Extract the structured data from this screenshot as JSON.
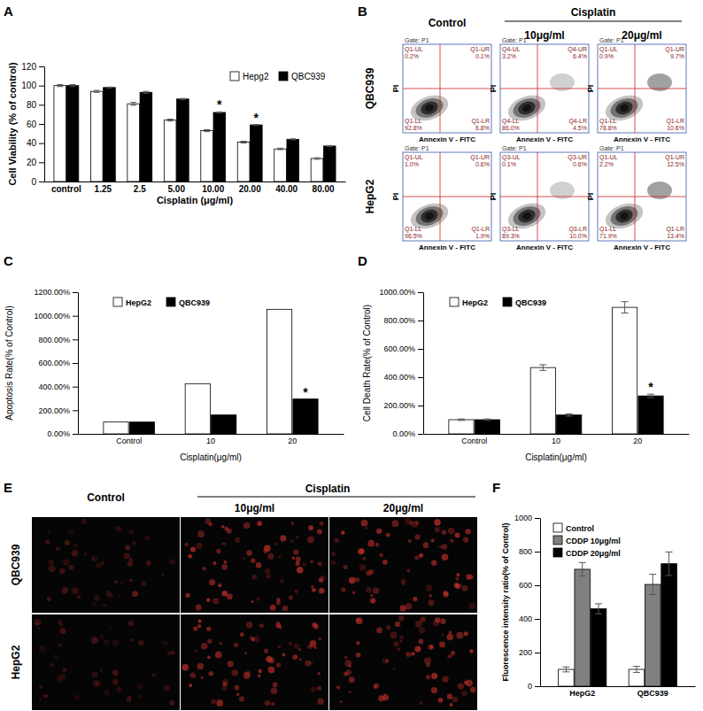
{
  "chart_data": [
    {
      "type": "bar",
      "title": "A",
      "x_label": "Cisplatin (μg/ml)",
      "y_label": "Cell Viability (% of control)",
      "categories": [
        "control",
        "1.25",
        "2.5",
        "5.00",
        "10.00",
        "20.00",
        "40.00",
        "80.00"
      ],
      "series": [
        {
          "name": "Hepg2",
          "color": "#ffffff",
          "values": [
            100,
            94,
            81,
            64,
            53,
            41,
            34,
            24
          ],
          "errors": [
            1,
            1,
            1.5,
            1,
            1,
            1,
            0.8,
            0.8
          ]
        },
        {
          "name": "QBC939",
          "color": "#000000",
          "values": [
            100,
            98,
            93,
            86,
            72,
            59,
            44,
            37
          ],
          "errors": [
            1,
            0.5,
            1,
            0.5,
            0.5,
            0.5,
            0.5,
            0.5
          ]
        }
      ],
      "annotations": [
        {
          "text": "*",
          "x": "10.00",
          "series": "QBC939"
        },
        {
          "text": "*",
          "x": "20.00",
          "series": "QBC939"
        }
      ],
      "ylim": [
        0,
        120
      ],
      "yticks": [
        0,
        20,
        40,
        60,
        80,
        100,
        120
      ],
      "grid": false,
      "legend": "upper right"
    },
    {
      "type": "bar",
      "title": "C",
      "x_label": "Cisplatin(μg/ml)",
      "y_label": "Apoptosis Rate(% of Control)",
      "categories": [
        "Control",
        "10",
        "20"
      ],
      "series": [
        {
          "name": "HepG2",
          "color": "#ffffff",
          "values": [
            100,
            425,
            1055
          ]
        },
        {
          "name": "QBC939",
          "color": "#000000",
          "values": [
            100,
            160,
            295
          ]
        }
      ],
      "annotations": [
        {
          "text": "*",
          "x": "20",
          "series": "QBC939"
        }
      ],
      "ylim": [
        0,
        1200
      ],
      "yticks": [
        {
          "value": 0,
          "label": "0.00%"
        },
        {
          "value": 200,
          "label": "200.00%"
        },
        {
          "value": 400,
          "label": "400.00%"
        },
        {
          "value": 600,
          "label": "600.00%"
        },
        {
          "value": 800,
          "label": "800.00%"
        },
        {
          "value": 1000,
          "label": "1000.00%"
        },
        {
          "value": 1200,
          "label": "1200.00%"
        }
      ],
      "grid": false,
      "legend": "upper left"
    },
    {
      "type": "bar",
      "title": "D",
      "x_label": "Cisplatin(μg/ml)",
      "y_label": "Cell Death Rate(% of Control)",
      "categories": [
        "Control",
        "10",
        "20"
      ],
      "series": [
        {
          "name": "HepG2",
          "color": "#ffffff",
          "values": [
            100,
            468,
            893
          ],
          "errors": [
            5,
            20,
            40
          ]
        },
        {
          "name": "QBC939",
          "color": "#000000",
          "values": [
            100,
            133,
            268
          ],
          "errors": [
            5,
            8,
            12
          ]
        }
      ],
      "annotations": [
        {
          "text": "*",
          "x": "20",
          "series": "QBC939"
        }
      ],
      "ylim": [
        0,
        1000
      ],
      "yticks": [
        {
          "value": 0,
          "label": "0.00%"
        },
        {
          "value": 200,
          "label": "200.00%"
        },
        {
          "value": 400,
          "label": "400.00%"
        },
        {
          "value": 600,
          "label": "600.00%"
        },
        {
          "value": 800,
          "label": "800.00%"
        },
        {
          "value": 1000,
          "label": "1000.00%"
        }
      ],
      "grid": false,
      "legend": "upper left"
    },
    {
      "type": "bar",
      "title": "F",
      "y_label": "Fluorescence intensity ratio(% of Control)",
      "categories": [
        "HepG2",
        "QBC939"
      ],
      "series": [
        {
          "name": "Control",
          "color": "#ffffff",
          "values": [
            100,
            100
          ],
          "errors": [
            15,
            18
          ]
        },
        {
          "name": "CDDP 10μg/ml",
          "color": "#808080",
          "values": [
            695,
            605
          ],
          "errors": [
            40,
            60
          ]
        },
        {
          "name": "CDDP 20μg/ml",
          "color": "#000000",
          "values": [
            460,
            728
          ],
          "errors": [
            30,
            70
          ]
        }
      ],
      "ylim": [
        0,
        1000
      ],
      "yticks": [
        0,
        200,
        400,
        600,
        800,
        1000
      ],
      "grid": false,
      "legend": "upper left"
    }
  ],
  "flow_cytometry": {
    "title": "B",
    "header": "Cisplatin",
    "columns": [
      "Control",
      "10μg/ml",
      "20μg/ml"
    ],
    "rows": [
      "QBC939",
      "HepG2"
    ],
    "gate": "Gate: P1",
    "x_label": "Annexin V - FITC",
    "y_label": "PI",
    "plots": [
      [
        {
          "UL": [
            "Q1-UL",
            "0.2%"
          ],
          "UR": [
            "Q1-UR",
            "0.1%"
          ],
          "LL": [
            "Q1-LL",
            "92.8%"
          ],
          "LR": [
            "Q1-LR",
            "6.8%"
          ]
        },
        {
          "UL": [
            "Q4-UL",
            "3.2%"
          ],
          "UR": [
            "Q4-UR",
            "6.4%"
          ],
          "LL": [
            "Q4-LL",
            "86.0%"
          ],
          "LR": [
            "Q4-LR",
            "4.5%"
          ]
        },
        {
          "UL": [
            "Q1-UL",
            "0.9%"
          ],
          "UR": [
            "Q1-UR",
            "9.7%"
          ],
          "LL": [
            "Q1-LL",
            "78.8%"
          ],
          "LR": [
            "Q1-LR",
            "10.6%"
          ]
        }
      ],
      [
        {
          "UL": [
            "Q1-UL",
            "1.0%"
          ],
          "UR": [
            "Q1-UR",
            "0.6%"
          ],
          "LL": [
            "Q1-LL",
            "96.5%"
          ],
          "LR": [
            "Q1-LR",
            "1.9%"
          ]
        },
        {
          "UL": [
            "Q3-UL",
            "0.1%"
          ],
          "UR": [
            "Q3-UR",
            "0.6%"
          ],
          "LL": [
            "Q3-LL",
            "89.3%"
          ],
          "LR": [
            "Q3-LR",
            "10.0%"
          ]
        },
        {
          "UL": [
            "Q1-UL",
            "2.2%"
          ],
          "UR": [
            "Q1-UR",
            "12.5%"
          ],
          "LL": [
            "Q1-LL",
            "71.9%"
          ],
          "LR": [
            "Q1-LR",
            "13.4%"
          ]
        }
      ]
    ]
  },
  "images": {
    "title": "E",
    "header": "Cisplatin",
    "columns": [
      "Control",
      "10μg/ml",
      "20μg/ml"
    ],
    "rows": [
      "QBC939",
      "HepG2"
    ]
  }
}
